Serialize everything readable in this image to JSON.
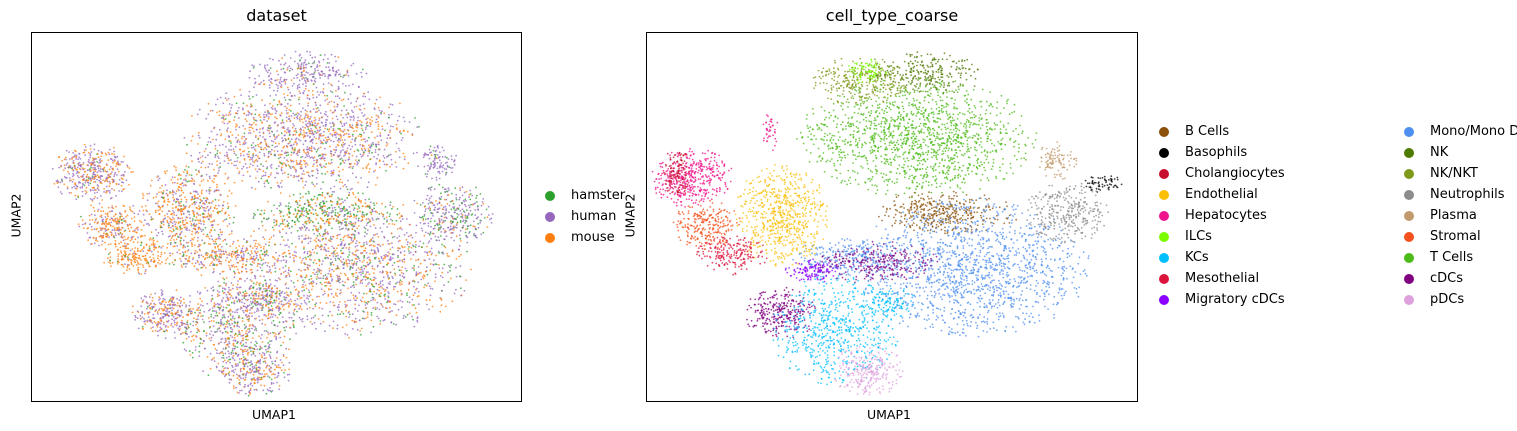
{
  "chart_data": [
    {
      "type": "scatter",
      "title": "dataset",
      "xlabel": "UMAP1",
      "ylabel": "UMAP2",
      "legend_position": "right",
      "grid": false,
      "series": [
        {
          "name": "hamster",
          "color": "#2ca02c"
        },
        {
          "name": "human",
          "color": "#9467bd"
        },
        {
          "name": "mouse",
          "color": "#ff7f0e"
        }
      ]
    },
    {
      "type": "scatter",
      "title": "cell_type_coarse",
      "xlabel": "UMAP1",
      "ylabel": "UMAP2",
      "legend_position": "right",
      "grid": false,
      "series": [
        {
          "name": "B Cells",
          "color": "#8c510a"
        },
        {
          "name": "Basophils",
          "color": "#000000"
        },
        {
          "name": "Cholangiocytes",
          "color": "#c8102e"
        },
        {
          "name": "Endothelial",
          "color": "#fbbf0a"
        },
        {
          "name": "Hepatocytes",
          "color": "#f0148c"
        },
        {
          "name": "ILCs",
          "color": "#7cfc00"
        },
        {
          "name": "KCs",
          "color": "#00bfff"
        },
        {
          "name": "Mesothelial",
          "color": "#dc143c"
        },
        {
          "name": "Migratory cDCs",
          "color": "#8b00ff"
        },
        {
          "name": "Mono/Mono Derived",
          "color": "#4f8ff0"
        },
        {
          "name": "NK",
          "color": "#4f7a00"
        },
        {
          "name": "NK/NKT",
          "color": "#7f9a1a"
        },
        {
          "name": "Neutrophils",
          "color": "#8c8c8c"
        },
        {
          "name": "Plasma",
          "color": "#c19a6b"
        },
        {
          "name": "Stromal",
          "color": "#f4511e"
        },
        {
          "name": "T Cells",
          "color": "#4cbb17"
        },
        {
          "name": "cDCs",
          "color": "#800080"
        },
        {
          "name": "pDCs",
          "color": "#dda0dd"
        }
      ]
    }
  ]
}
